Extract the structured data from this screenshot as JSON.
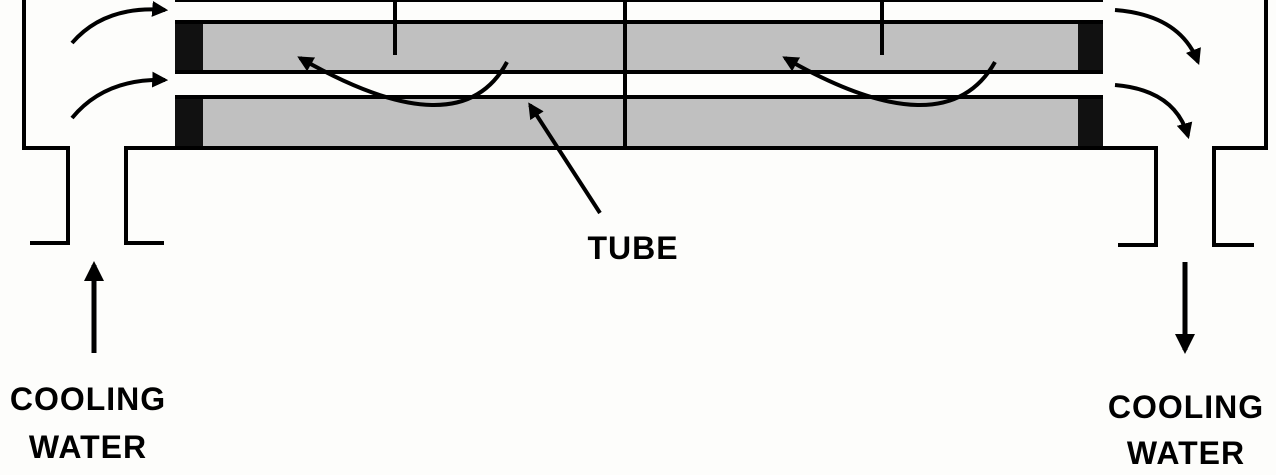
{
  "labels": {
    "tube": "TUBE",
    "inlet_line1": "COOLING",
    "inlet_line2": "WATER",
    "outlet_line1": "COOLING",
    "outlet_line2": "WATER"
  },
  "colors": {
    "stroke": "#000000",
    "tube_fill": "#c0c0c0",
    "tube_sheet": "#111111",
    "background": "#fdfdfb"
  }
}
